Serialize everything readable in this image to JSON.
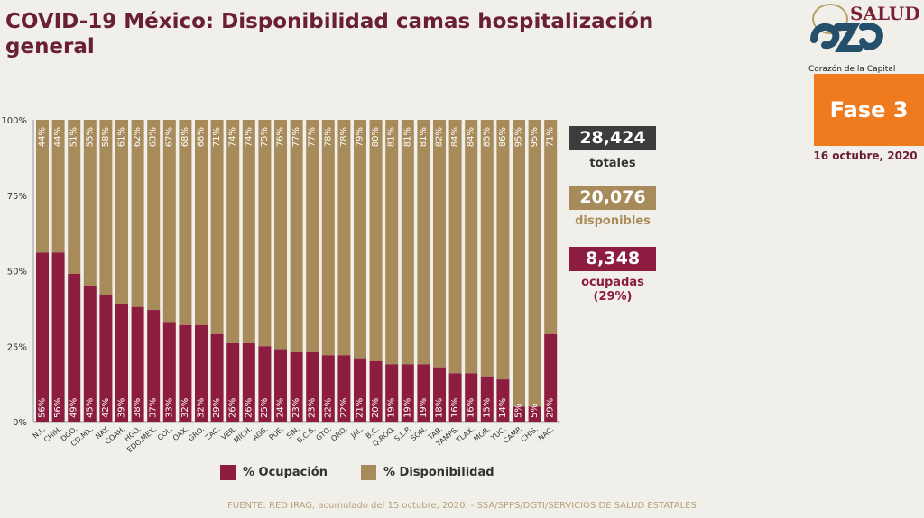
{
  "title": "COVID-19 México: Disponibilidad camas hospitalización general",
  "logo": {
    "brand": "SALUD",
    "caption": "Corazón de la Capital"
  },
  "phase": "Fase 3",
  "date": "16 octubre, 2020",
  "summary": {
    "total_value": "28,424",
    "total_label": "totales",
    "available_value": "20,076",
    "available_label": "disponibles",
    "occupied_value": "8,348",
    "occupied_label": "ocupadas",
    "occupied_pct": "(29%)"
  },
  "legend": {
    "occupied": "% Ocupación",
    "available": "% Disponibilidad"
  },
  "source": "FUENTE: RED IRAG, acumulado del 15 octubre, 2020. - SSA/SPPS/DGTI/SERVICIOS DE SALUD ESTATALES",
  "colors": {
    "occupied": "#8c1d40",
    "available": "#a88b5a",
    "total_badge": "#3c3c3c"
  },
  "chart_data": {
    "type": "bar",
    "stacked": true,
    "title": "",
    "xlabel": "",
    "ylabel": "",
    "ylim": [
      0,
      100
    ],
    "yticks": [
      "0%",
      "25%",
      "50%",
      "75%",
      "100%"
    ],
    "categories": [
      "N.L.",
      "CHIH.",
      "DGO.",
      "CD.MX.",
      "NAY.",
      "COAH.",
      "HGO.",
      "EDO.MEX.",
      "COL.",
      "OAX.",
      "GRO.",
      "ZAC.",
      "VER.",
      "MICH.",
      "AGS.",
      "PUE.",
      "SIN.",
      "B.C.S.",
      "GTO.",
      "QRO.",
      "JAL.",
      "B.C.",
      "Q.ROO.",
      "S.L.P.",
      "SON.",
      "TAB.",
      "TAMPS.",
      "TLAX.",
      "MOR.",
      "YUC.",
      "CAMP.",
      "CHIS.",
      "NAC."
    ],
    "series": [
      {
        "name": "% Ocupación",
        "values": [
          56,
          56,
          49,
          45,
          42,
          39,
          38,
          37,
          33,
          32,
          32,
          29,
          26,
          26,
          25,
          24,
          23,
          23,
          22,
          22,
          21,
          20,
          19,
          19,
          19,
          18,
          16,
          16,
          15,
          14,
          5,
          5,
          29
        ]
      },
      {
        "name": "% Disponibilidad",
        "values": [
          44,
          44,
          51,
          55,
          58,
          61,
          62,
          63,
          67,
          68,
          68,
          71,
          74,
          74,
          75,
          76,
          77,
          77,
          78,
          78,
          79,
          80,
          81,
          81,
          81,
          82,
          84,
          84,
          85,
          86,
          95,
          95,
          71
        ]
      }
    ],
    "data_label_suffix": "%",
    "grid": false,
    "legend_position": "bottom"
  }
}
